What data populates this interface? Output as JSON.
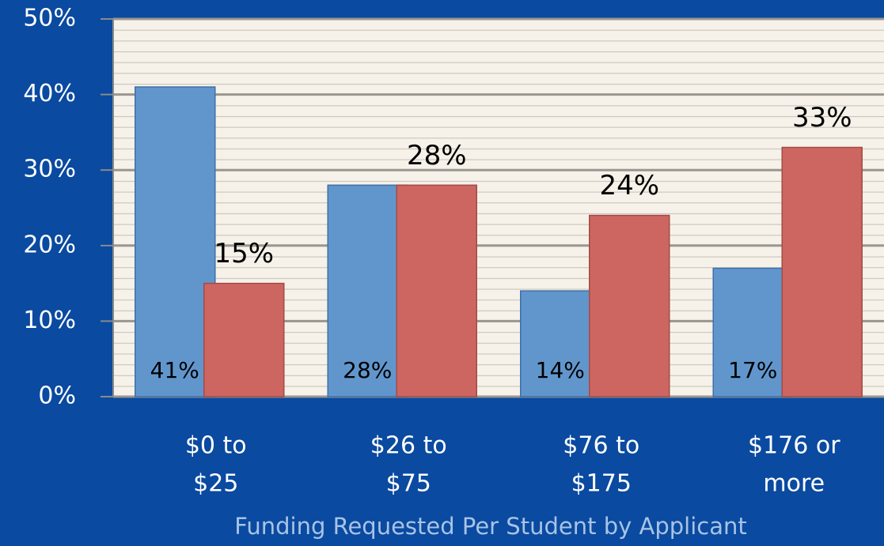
{
  "chart_data": {
    "type": "bar",
    "x_label": "Funding Requested Per Student by Applicant",
    "categories": [
      [
        "$0 to",
        "$25"
      ],
      [
        "$26 to",
        "$75"
      ],
      [
        "$76 to",
        "$175"
      ],
      [
        "$176 or",
        "more"
      ]
    ],
    "series": [
      {
        "color": "#6196cd",
        "values": [
          41,
          28,
          14,
          17
        ],
        "value_labels": [
          "41%",
          "28%",
          "14%",
          "17%"
        ]
      },
      {
        "color": "#cd6660",
        "values": [
          15,
          28,
          24,
          33
        ],
        "value_labels": [
          "15%",
          "28%",
          "24%",
          "33%"
        ]
      }
    ],
    "ylim": [
      0,
      50
    ],
    "yticks": [
      {
        "value": 0,
        "label": "0%"
      },
      {
        "value": 10,
        "label": "10%"
      },
      {
        "value": 20,
        "label": "20%"
      },
      {
        "value": 30,
        "label": "30%"
      },
      {
        "value": 40,
        "label": "40%"
      },
      {
        "value": 50,
        "label": "50%"
      }
    ],
    "grid": true
  }
}
